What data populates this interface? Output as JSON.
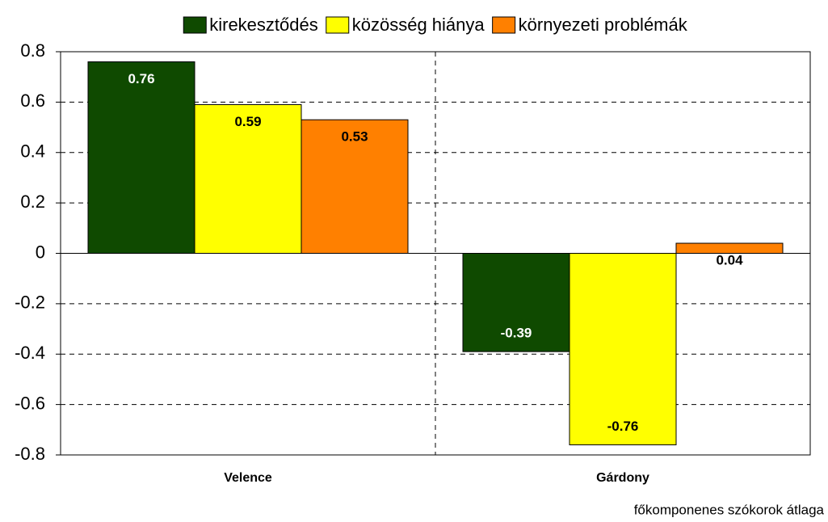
{
  "chart_data": {
    "type": "bar",
    "categories": [
      "Velence",
      "Gárdony"
    ],
    "series": [
      {
        "name": "kirekesztődés",
        "color": "#0f4a00",
        "values": [
          0.76,
          -0.39
        ]
      },
      {
        "name": "közösség hiánya",
        "color": "#ffff00",
        "values": [
          0.59,
          -0.76
        ]
      },
      {
        "name": "környezeti problémák",
        "color": "#ff8000",
        "values": [
          0.53,
          0.04
        ]
      }
    ],
    "ylim": [
      -0.8,
      0.8
    ],
    "yticks": [
      -0.8,
      -0.6,
      -0.4,
      -0.2,
      0,
      0.2,
      0.4,
      0.6,
      0.8
    ],
    "grid": true,
    "x_label": "főkomponenes szókorok átlaga",
    "legend": "top"
  }
}
